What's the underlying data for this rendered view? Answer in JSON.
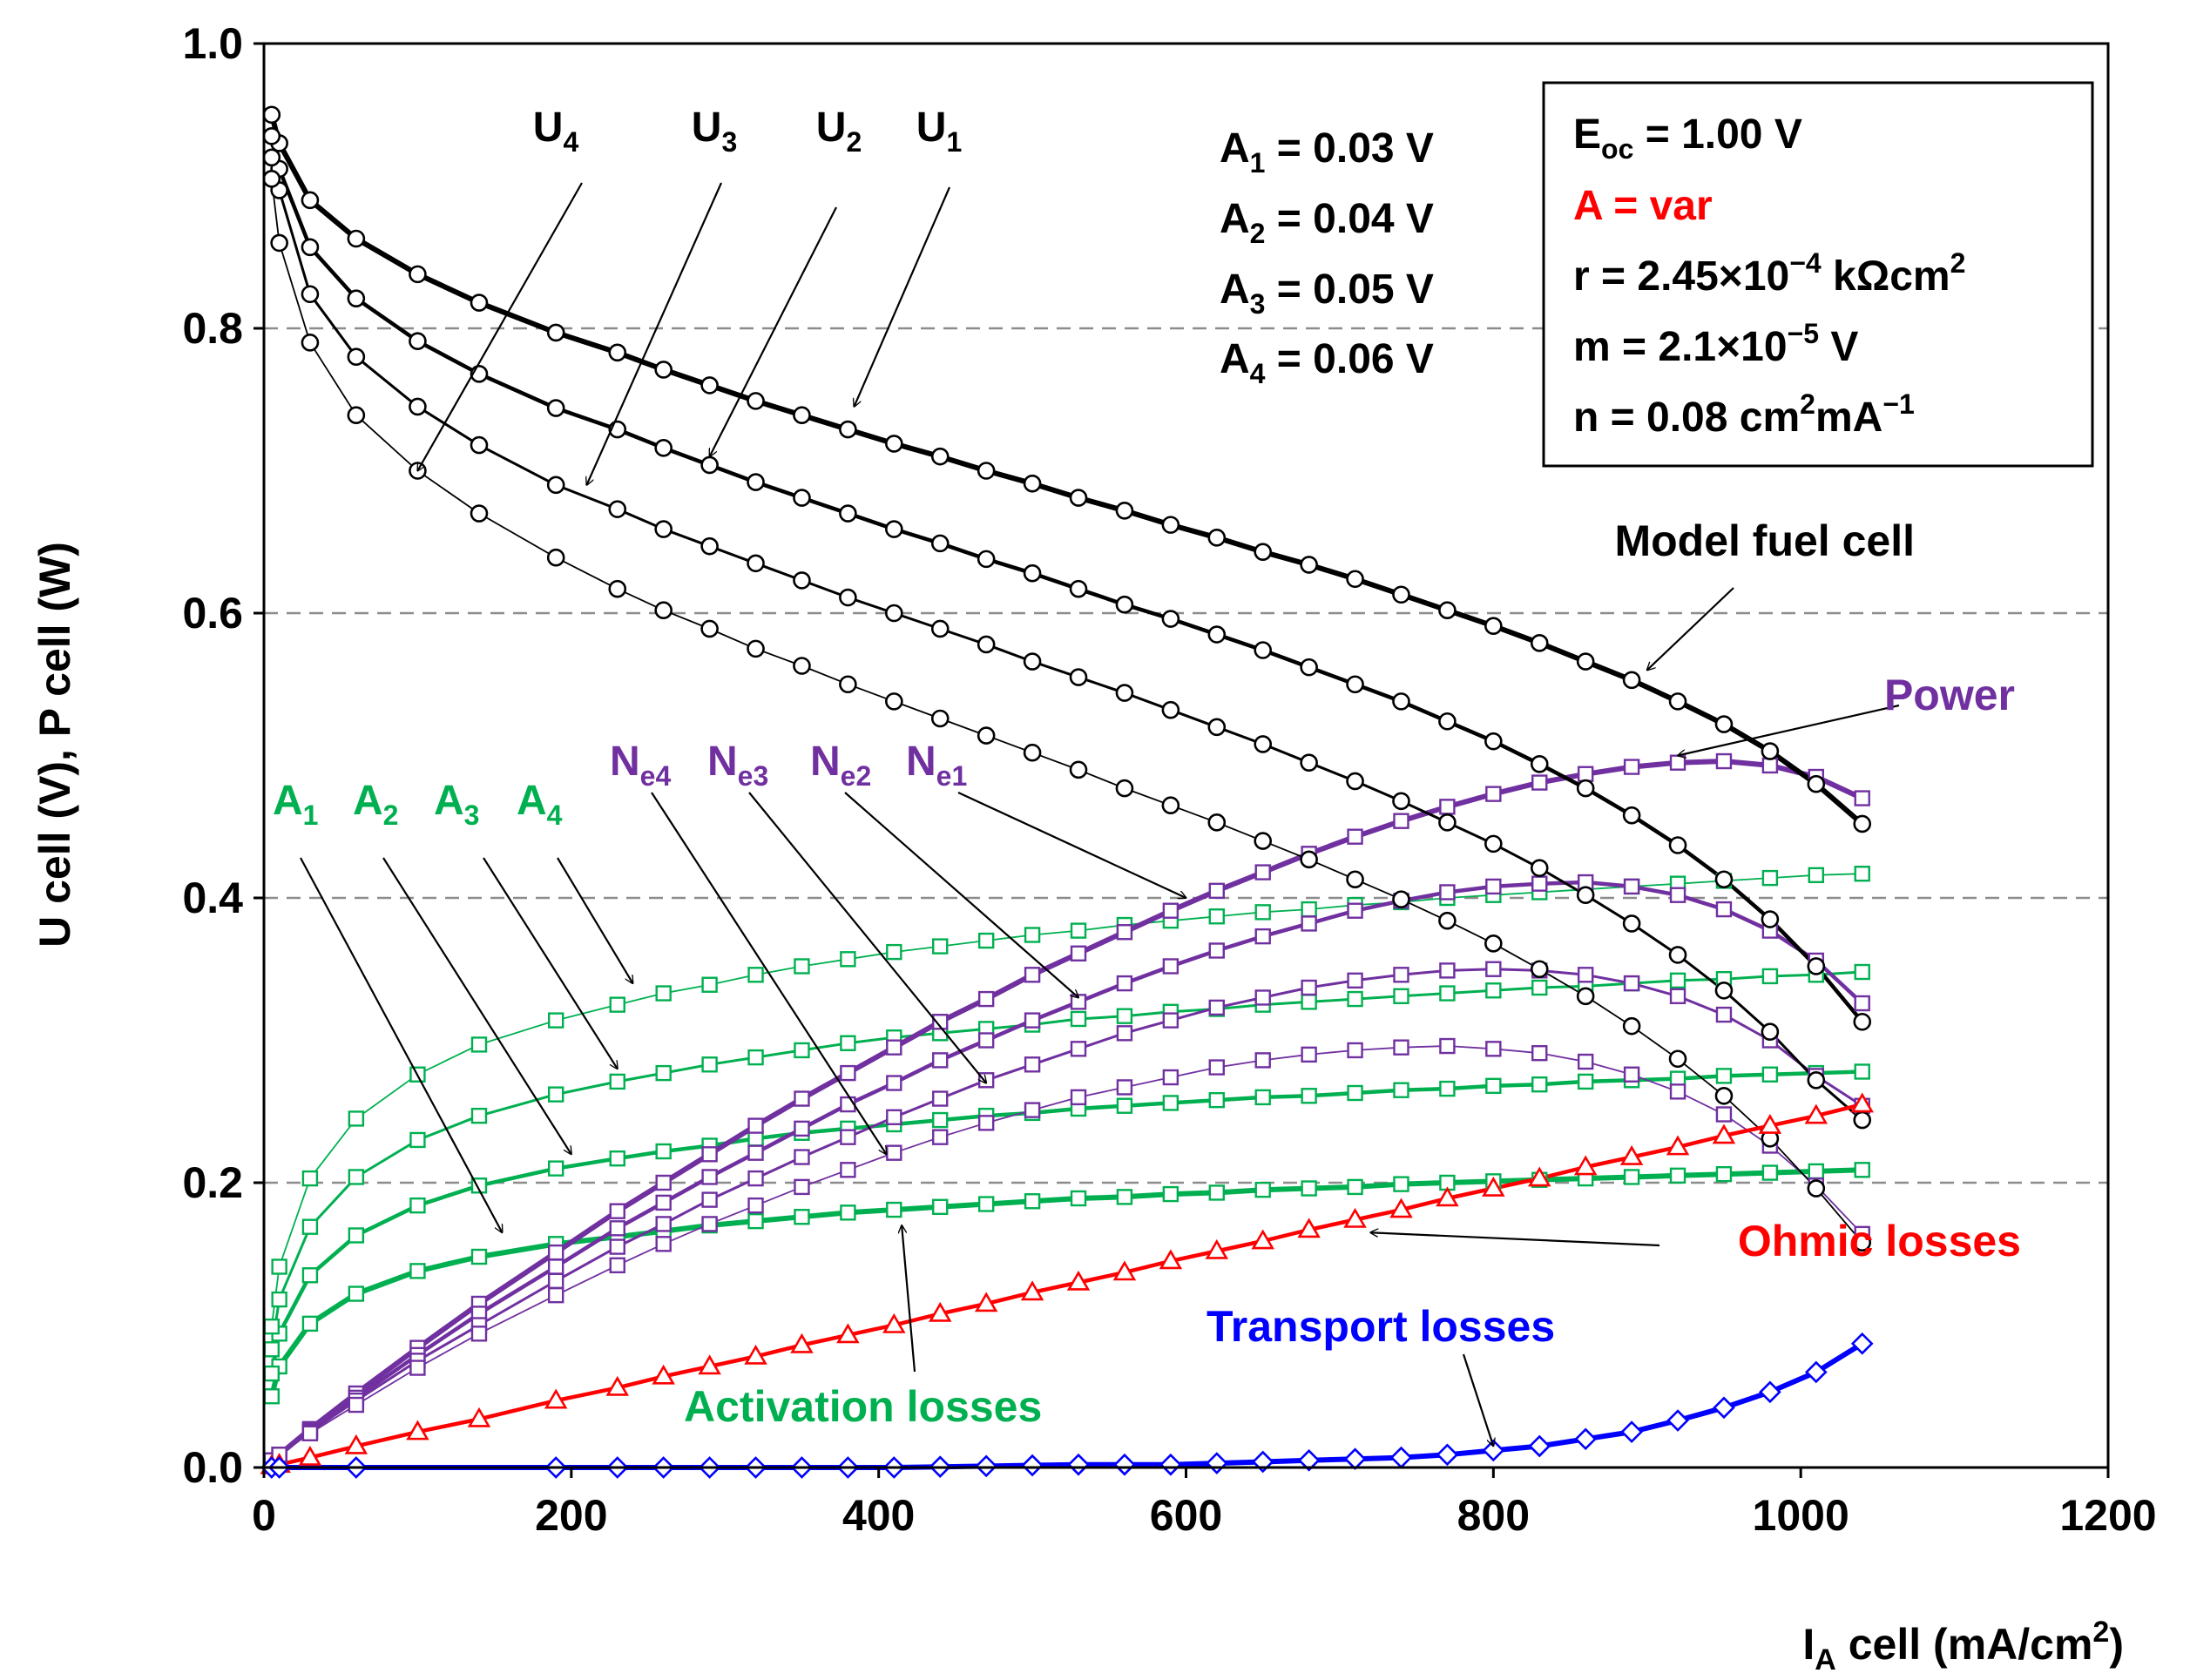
{
  "chart_data": {
    "type": "line",
    "xlabel": "I",
    "xlabel_sub": "A",
    "xlabel_rest": " cell (mA/cm",
    "xlabel_sup": "2",
    "xlabel_end": ")",
    "ylabel": "U cell (V), P cell (W)",
    "xlim": [
      0,
      1200
    ],
    "ylim": [
      0,
      1.0
    ],
    "x_ticks": [
      0,
      200,
      400,
      600,
      800,
      1000,
      1200
    ],
    "x_tick_labels": [
      "0",
      "200",
      "400",
      "600",
      "800",
      "1000",
      "1200"
    ],
    "y_ticks": [
      0,
      0.2,
      0.4,
      0.6,
      0.8,
      1.0
    ],
    "y_tick_labels": [
      "0.0",
      "0.2",
      "0.4",
      "0.6",
      "0.8",
      "1.0"
    ],
    "gridlines_y": [
      0.2,
      0.4,
      0.6,
      0.8
    ],
    "colors": {
      "voltage": "#000000",
      "power": "#7030a0",
      "activation": "#00b050",
      "ohmic": "#ff0000",
      "transport": "#0000ff",
      "grid": "#8c8c8c"
    },
    "x": [
      5,
      10,
      30,
      60,
      100,
      140,
      190,
      230,
      260,
      290,
      320,
      350,
      380,
      410,
      440,
      470,
      500,
      530,
      560,
      590,
      620,
      650,
      680,
      710,
      740,
      770,
      800,
      830,
      860,
      890,
      920,
      950,
      980,
      1010,
      1040
    ],
    "series": [
      {
        "name": "U1",
        "kind": "voltage",
        "width": 6,
        "values": [
          0.95,
          0.93,
          0.89,
          0.863,
          0.838,
          0.818,
          0.797,
          0.783,
          0.771,
          0.76,
          0.749,
          0.739,
          0.729,
          0.719,
          0.71,
          0.7,
          0.691,
          0.681,
          0.672,
          0.662,
          0.653,
          0.643,
          0.634,
          0.624,
          0.613,
          0.602,
          0.591,
          0.579,
          0.566,
          0.553,
          0.538,
          0.522,
          0.503,
          0.48,
          0.452
        ]
      },
      {
        "name": "U2",
        "kind": "voltage",
        "width": 4.5,
        "values": [
          0.935,
          0.912,
          0.857,
          0.821,
          0.791,
          0.768,
          0.744,
          0.729,
          0.716,
          0.704,
          0.692,
          0.681,
          0.67,
          0.659,
          0.649,
          0.638,
          0.628,
          0.617,
          0.606,
          0.596,
          0.585,
          0.574,
          0.562,
          0.55,
          0.538,
          0.524,
          0.51,
          0.494,
          0.477,
          0.458,
          0.437,
          0.413,
          0.385,
          0.352,
          0.313
        ]
      },
      {
        "name": "U3",
        "kind": "voltage",
        "width": 3,
        "values": [
          0.92,
          0.897,
          0.824,
          0.78,
          0.745,
          0.718,
          0.69,
          0.673,
          0.659,
          0.647,
          0.635,
          0.623,
          0.611,
          0.6,
          0.589,
          0.578,
          0.566,
          0.555,
          0.544,
          0.532,
          0.52,
          0.508,
          0.495,
          0.482,
          0.468,
          0.453,
          0.438,
          0.421,
          0.402,
          0.382,
          0.36,
          0.335,
          0.306,
          0.272,
          0.244
        ]
      },
      {
        "name": "U4",
        "kind": "voltage",
        "width": 1.8,
        "values": [
          0.905,
          0.86,
          0.79,
          0.739,
          0.7,
          0.67,
          0.639,
          0.617,
          0.602,
          0.589,
          0.575,
          0.563,
          0.55,
          0.538,
          0.526,
          0.514,
          0.502,
          0.49,
          0.477,
          0.465,
          0.453,
          0.44,
          0.427,
          0.413,
          0.399,
          0.384,
          0.368,
          0.35,
          0.331,
          0.31,
          0.287,
          0.261,
          0.231,
          0.196,
          0.158
        ]
      },
      {
        "name": "Ne1",
        "kind": "power",
        "width": 6,
        "values": [
          0.005,
          0.009,
          0.027,
          0.052,
          0.084,
          0.115,
          0.151,
          0.18,
          0.2,
          0.22,
          0.24,
          0.259,
          0.277,
          0.295,
          0.313,
          0.329,
          0.346,
          0.361,
          0.376,
          0.391,
          0.405,
          0.418,
          0.431,
          0.443,
          0.454,
          0.464,
          0.473,
          0.481,
          0.487,
          0.492,
          0.495,
          0.496,
          0.493,
          0.485,
          0.47
        ]
      },
      {
        "name": "Ne2",
        "kind": "power",
        "width": 4.5,
        "values": [
          0.005,
          0.009,
          0.026,
          0.049,
          0.079,
          0.108,
          0.141,
          0.168,
          0.186,
          0.204,
          0.221,
          0.238,
          0.255,
          0.27,
          0.286,
          0.3,
          0.314,
          0.327,
          0.34,
          0.352,
          0.363,
          0.373,
          0.382,
          0.391,
          0.398,
          0.404,
          0.408,
          0.41,
          0.411,
          0.408,
          0.402,
          0.392,
          0.377,
          0.356,
          0.326
        ]
      },
      {
        "name": "Ne3",
        "kind": "power",
        "width": 3,
        "values": [
          0.005,
          0.009,
          0.025,
          0.047,
          0.075,
          0.1,
          0.131,
          0.155,
          0.171,
          0.188,
          0.203,
          0.218,
          0.232,
          0.246,
          0.259,
          0.272,
          0.283,
          0.294,
          0.305,
          0.314,
          0.323,
          0.33,
          0.337,
          0.342,
          0.346,
          0.349,
          0.35,
          0.349,
          0.346,
          0.34,
          0.331,
          0.318,
          0.3,
          0.275,
          0.254
        ]
      },
      {
        "name": "Ne4",
        "kind": "power",
        "width": 1.8,
        "values": [
          0.005,
          0.009,
          0.024,
          0.044,
          0.07,
          0.094,
          0.121,
          0.142,
          0.157,
          0.171,
          0.184,
          0.197,
          0.209,
          0.221,
          0.232,
          0.242,
          0.251,
          0.26,
          0.267,
          0.274,
          0.281,
          0.286,
          0.29,
          0.293,
          0.295,
          0.296,
          0.294,
          0.291,
          0.285,
          0.276,
          0.264,
          0.248,
          0.226,
          0.198,
          0.164
        ]
      },
      {
        "name": "A1",
        "kind": "activation",
        "width": 6,
        "values": [
          0.05,
          0.071,
          0.101,
          0.122,
          0.138,
          0.148,
          0.157,
          0.162,
          0.166,
          0.17,
          0.173,
          0.176,
          0.179,
          0.181,
          0.183,
          0.185,
          0.187,
          0.189,
          0.19,
          0.192,
          0.193,
          0.195,
          0.196,
          0.197,
          0.199,
          0.2,
          0.201,
          0.202,
          0.203,
          0.204,
          0.205,
          0.206,
          0.207,
          0.208,
          0.209
        ]
      },
      {
        "name": "A2",
        "kind": "activation",
        "width": 4.5,
        "values": [
          0.066,
          0.094,
          0.135,
          0.163,
          0.184,
          0.198,
          0.21,
          0.217,
          0.222,
          0.226,
          0.231,
          0.235,
          0.238,
          0.241,
          0.244,
          0.247,
          0.249,
          0.252,
          0.254,
          0.256,
          0.258,
          0.26,
          0.261,
          0.263,
          0.265,
          0.266,
          0.268,
          0.269,
          0.271,
          0.272,
          0.273,
          0.275,
          0.276,
          0.277,
          0.278
        ]
      },
      {
        "name": "A3",
        "kind": "activation",
        "width": 3,
        "values": [
          0.083,
          0.118,
          0.169,
          0.204,
          0.23,
          0.247,
          0.262,
          0.271,
          0.277,
          0.283,
          0.288,
          0.293,
          0.298,
          0.302,
          0.305,
          0.308,
          0.311,
          0.315,
          0.317,
          0.32,
          0.322,
          0.325,
          0.327,
          0.329,
          0.331,
          0.333,
          0.335,
          0.337,
          0.338,
          0.34,
          0.342,
          0.343,
          0.345,
          0.346,
          0.348
        ]
      },
      {
        "name": "A4",
        "kind": "activation",
        "width": 1.8,
        "values": [
          0.099,
          0.141,
          0.203,
          0.245,
          0.276,
          0.297,
          0.314,
          0.325,
          0.333,
          0.339,
          0.346,
          0.352,
          0.357,
          0.362,
          0.366,
          0.37,
          0.374,
          0.377,
          0.381,
          0.384,
          0.387,
          0.39,
          0.392,
          0.395,
          0.397,
          0.4,
          0.402,
          0.404,
          0.406,
          0.408,
          0.41,
          0.412,
          0.414,
          0.416,
          0.417
        ]
      },
      {
        "name": "Ohmic losses",
        "kind": "ohmic",
        "width": 4.5,
        "values": [
          0.001,
          0.002,
          0.007,
          0.015,
          0.025,
          0.034,
          0.047,
          0.056,
          0.064,
          0.071,
          0.078,
          0.086,
          0.093,
          0.1,
          0.108,
          0.115,
          0.123,
          0.13,
          0.137,
          0.145,
          0.152,
          0.159,
          0.167,
          0.174,
          0.181,
          0.189,
          0.196,
          0.203,
          0.211,
          0.218,
          0.225,
          0.233,
          0.24,
          0.247,
          0.255
        ]
      }
    ],
    "transport": {
      "name": "Transport losses",
      "kind": "transport",
      "width": 6,
      "x": [
        5,
        10,
        60,
        190,
        230,
        260,
        290,
        320,
        350,
        380,
        410,
        440,
        470,
        500,
        530,
        560,
        590,
        620,
        650,
        680,
        710,
        740,
        770,
        800,
        830,
        860,
        890,
        920,
        950,
        980,
        1010,
        1040
      ],
      "values": [
        0,
        0,
        0,
        0,
        0,
        0,
        0,
        0,
        0,
        0,
        0,
        0.0005,
        0.001,
        0.0015,
        0.002,
        0.002,
        0.002,
        0.003,
        0.004,
        0.005,
        0.006,
        0.007,
        0.009,
        0.012,
        0.015,
        0.02,
        0.025,
        0.033,
        0.042,
        0.053,
        0.067,
        0.087
      ]
    },
    "labels": {
      "U4": {
        "base": "U",
        "sub": "4"
      },
      "U3": {
        "base": "U",
        "sub": "3"
      },
      "U2": {
        "base": "U",
        "sub": "2"
      },
      "U1": {
        "base": "U",
        "sub": "1"
      },
      "Ne4": {
        "base": "N",
        "sub": "e4"
      },
      "Ne3": {
        "base": "N",
        "sub": "e3"
      },
      "Ne2": {
        "base": "N",
        "sub": "e2"
      },
      "Ne1": {
        "base": "N",
        "sub": "e1"
      },
      "A1": {
        "base": "A",
        "sub": "1"
      },
      "A2": {
        "base": "A",
        "sub": "2"
      },
      "A3": {
        "base": "A",
        "sub": "3"
      },
      "A4": {
        "base": "A",
        "sub": "4"
      },
      "model": "Model fuel cell",
      "power": "Power",
      "ohmic": "Ohmic losses",
      "transport": "Transport losses",
      "activation": "Activation losses"
    },
    "a_values": [
      {
        "base": "A",
        "sub": "1",
        "text": " = 0.03 V"
      },
      {
        "base": "A",
        "sub": "2",
        "text": " = 0.04 V"
      },
      {
        "base": "A",
        "sub": "3",
        "text": " = 0.05 V"
      },
      {
        "base": "A",
        "sub": "4",
        "text": " = 0.06 V"
      }
    ],
    "parameters": {
      "eoc_base": "E",
      "eoc_sub": "oc",
      "eoc_text": " = 1.00 V",
      "a_var": "A = var",
      "r_text": "r = 2.45×10",
      "r_sup": "−4",
      "r_unit": " kΩcm",
      "r_unit_sup": "2",
      "m_text": "m = 2.1×10",
      "m_sup": "−5",
      "m_unit": " V",
      "n_text": "n = 0.08 cm",
      "n_sup": "2",
      "n_mid": "mA",
      "n_sup2": "−1"
    }
  }
}
